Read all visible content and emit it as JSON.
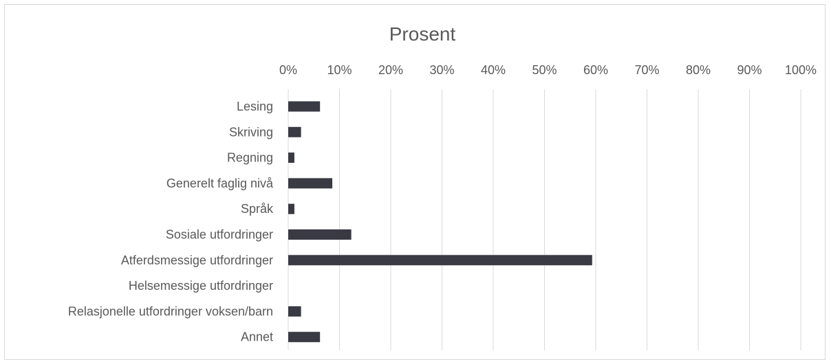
{
  "chart_data": {
    "type": "bar",
    "orientation": "horizontal",
    "title": "Prosent",
    "xlabel": "",
    "ylabel": "",
    "xlim": [
      0,
      100
    ],
    "x_ticks": [
      "0%",
      "10%",
      "20%",
      "30%",
      "40%",
      "50%",
      "60%",
      "70%",
      "80%",
      "90%",
      "100%"
    ],
    "x_axis_position": "top",
    "grid": true,
    "categories": [
      "Lesing",
      "Skriving",
      "Regning",
      "Generelt faglig nivå",
      "Språk",
      "Sosiale utfordringer",
      "Atferdsmessige utfordringer",
      "Helsemessige utfordringer",
      "Relasjonelle utfordringer voksen/barn",
      "Annet"
    ],
    "values": [
      6.2,
      2.5,
      1.2,
      8.6,
      1.2,
      12.3,
      59.3,
      0,
      2.5,
      6.2
    ],
    "colors": {
      "bar": "#3a3a44",
      "text": "#595959",
      "grid": "#d9d9d9"
    }
  }
}
